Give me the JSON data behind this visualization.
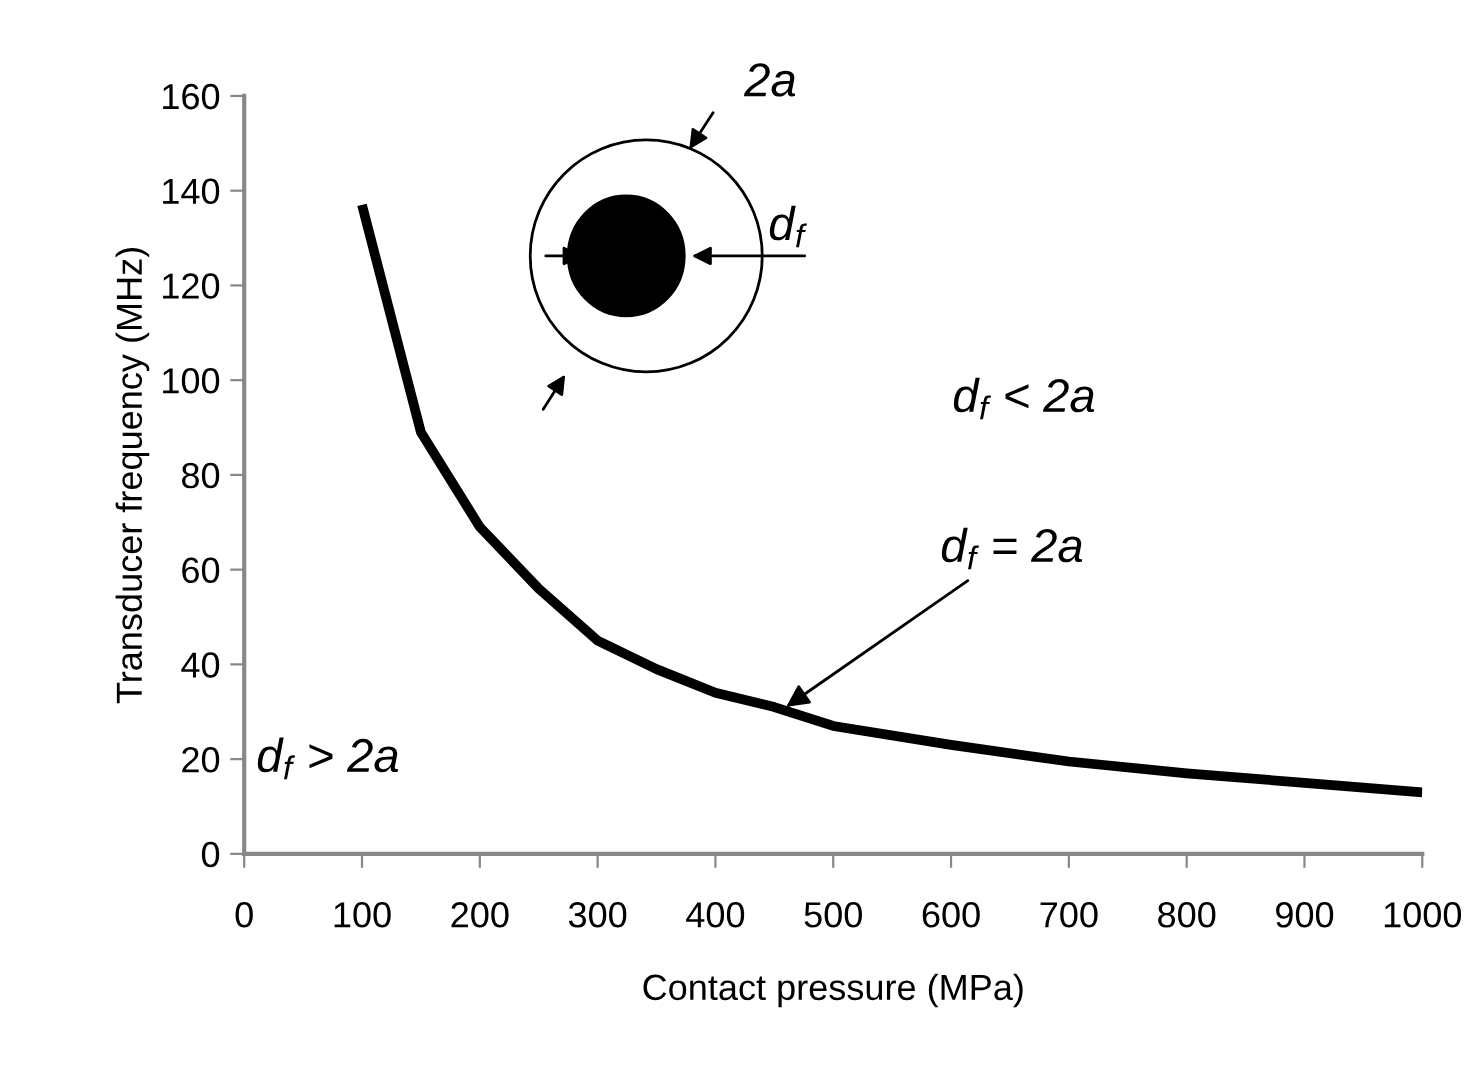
{
  "chart_data": {
    "type": "line",
    "xlabel": "Contact pressure (MPa)",
    "ylabel": "Transducer frequency (MHz)",
    "x": [
      100,
      150,
      200,
      250,
      300,
      350,
      400,
      450,
      500,
      600,
      700,
      800,
      900,
      1000
    ],
    "series": [
      {
        "color": "#000000",
        "values": [
          137,
          89,
          69,
          56,
          45,
          39,
          34,
          31,
          27,
          23,
          19.5,
          17,
          15,
          13
        ]
      }
    ],
    "xlim": [
      0,
      1000
    ],
    "xticks": [
      0,
      100,
      200,
      300,
      400,
      500,
      600,
      700,
      800,
      900,
      1000
    ],
    "ylim": [
      0,
      160
    ],
    "yticks": [
      0,
      20,
      40,
      60,
      80,
      100,
      120,
      140,
      160
    ],
    "grid": false,
    "legend": false,
    "marker": "none",
    "line_style": "solid",
    "annotations": [
      "2a",
      "d$_{f}$",
      "d$_{f}$ < 2a",
      "d$_{f}$ > 2a",
      {
        "text": "d$_{f}$ = 2a",
        "x": 460,
        "y": 31
      }
    ]
  }
}
